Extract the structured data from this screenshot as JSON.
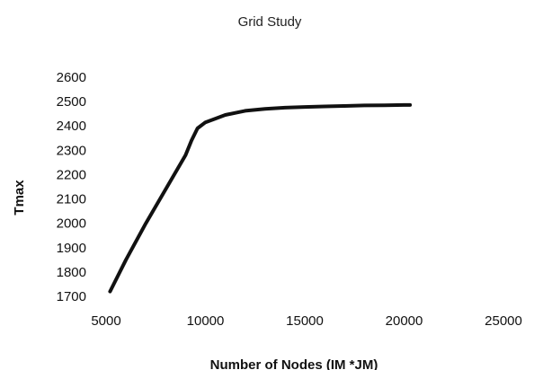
{
  "chart_data": {
    "type": "line",
    "title": "Grid Study",
    "xlabel": "Number of Nodes (IM *JM)",
    "ylabel": "Tmax",
    "xlim": [
      5000,
      25000
    ],
    "ylim": [
      1700,
      2600
    ],
    "x_ticks": [
      5000,
      10000,
      15000,
      20000,
      25000
    ],
    "y_ticks": [
      1700,
      1800,
      1900,
      2000,
      2100,
      2200,
      2300,
      2400,
      2500,
      2600
    ],
    "grid": false,
    "legend": "none",
    "line_color": "#111111",
    "series": [
      {
        "x": [
          5200,
          6000,
          7000,
          8000,
          9000,
          9300,
          9600,
          10000,
          10500,
          11000,
          12000,
          13000,
          14000,
          15000,
          16000,
          17000,
          18000,
          19000,
          20000,
          20300
        ],
        "y": [
          1720,
          1850,
          2000,
          2140,
          2280,
          2340,
          2390,
          2415,
          2430,
          2445,
          2462,
          2470,
          2475,
          2478,
          2480,
          2482,
          2484,
          2485,
          2486,
          2486
        ]
      }
    ]
  }
}
